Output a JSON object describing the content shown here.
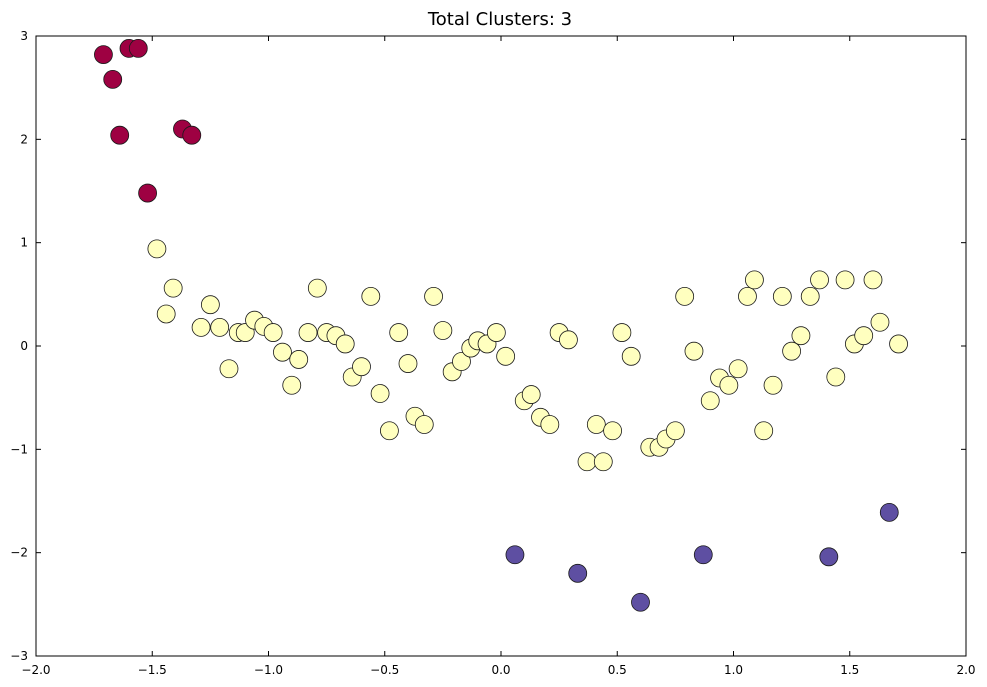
{
  "chart_data": {
    "type": "scatter",
    "title": "Total Clusters: 3",
    "xlabel": "",
    "ylabel": "",
    "xlim": [
      -2.0,
      2.0
    ],
    "ylim": [
      -3,
      3
    ],
    "x_ticks": [
      -2.0,
      -1.5,
      -1.0,
      -0.5,
      0.0,
      0.5,
      1.0,
      1.5,
      2.0
    ],
    "x_tick_labels": [
      "−2.0",
      "−1.5",
      "−1.0",
      "−0.5",
      "0.0",
      "0.5",
      "1.0",
      "1.5",
      "2.0"
    ],
    "y_ticks": [
      -3,
      -2,
      -1,
      0,
      1,
      2,
      3
    ],
    "y_tick_labels": [
      "−3",
      "−2",
      "−1",
      "0",
      "1",
      "2",
      "3"
    ],
    "grid": false,
    "legend": "none",
    "series": [
      {
        "color": "#9e0142",
        "points": [
          [
            -1.71,
            2.82
          ],
          [
            -1.67,
            2.58
          ],
          [
            -1.64,
            2.04
          ],
          [
            -1.6,
            2.88
          ],
          [
            -1.56,
            2.88
          ],
          [
            -1.37,
            2.1
          ],
          [
            -1.33,
            2.04
          ],
          [
            -1.52,
            1.48
          ]
        ]
      },
      {
        "color": "#ffffbf",
        "points": [
          [
            -1.48,
            0.94
          ],
          [
            -1.41,
            0.56
          ],
          [
            -1.44,
            0.31
          ],
          [
            -1.25,
            0.4
          ],
          [
            -1.29,
            0.18
          ],
          [
            -1.21,
            0.18
          ],
          [
            -1.13,
            0.13
          ],
          [
            -1.1,
            0.13
          ],
          [
            -1.06,
            0.25
          ],
          [
            -1.02,
            0.19
          ],
          [
            -0.98,
            0.13
          ],
          [
            -1.17,
            -0.22
          ],
          [
            -0.94,
            -0.06
          ],
          [
            -0.87,
            -0.13
          ],
          [
            -0.9,
            -0.38
          ],
          [
            -0.83,
            0.13
          ],
          [
            -0.79,
            0.56
          ],
          [
            -0.75,
            0.13
          ],
          [
            -0.71,
            0.1
          ],
          [
            -0.67,
            0.02
          ],
          [
            -0.64,
            -0.3
          ],
          [
            -0.6,
            -0.2
          ],
          [
            -0.56,
            0.48
          ],
          [
            -0.52,
            -0.46
          ],
          [
            -0.48,
            -0.82
          ],
          [
            -0.44,
            0.13
          ],
          [
            -0.4,
            -0.17
          ],
          [
            -0.37,
            -0.68
          ],
          [
            -0.33,
            -0.76
          ],
          [
            -0.29,
            0.48
          ],
          [
            -0.25,
            0.15
          ],
          [
            -0.21,
            -0.25
          ],
          [
            -0.17,
            -0.15
          ],
          [
            -0.13,
            -0.02
          ],
          [
            -0.1,
            0.05
          ],
          [
            -0.06,
            0.02
          ],
          [
            -0.02,
            0.13
          ],
          [
            0.02,
            -0.1
          ],
          [
            0.1,
            -0.53
          ],
          [
            0.13,
            -0.47
          ],
          [
            0.17,
            -0.69
          ],
          [
            0.21,
            -0.76
          ],
          [
            0.25,
            0.13
          ],
          [
            0.29,
            0.06
          ],
          [
            0.37,
            -1.12
          ],
          [
            0.41,
            -0.76
          ],
          [
            0.44,
            -1.12
          ],
          [
            0.48,
            -0.82
          ],
          [
            0.52,
            0.13
          ],
          [
            0.56,
            -0.1
          ],
          [
            0.64,
            -0.98
          ],
          [
            0.68,
            -0.98
          ],
          [
            0.71,
            -0.9
          ],
          [
            0.75,
            -0.82
          ],
          [
            0.79,
            0.48
          ],
          [
            0.83,
            -0.05
          ],
          [
            0.9,
            -0.53
          ],
          [
            0.94,
            -0.31
          ],
          [
            0.98,
            -0.38
          ],
          [
            1.02,
            -0.22
          ],
          [
            1.06,
            0.48
          ],
          [
            1.09,
            0.64
          ],
          [
            1.13,
            -0.82
          ],
          [
            1.17,
            -0.38
          ],
          [
            1.21,
            0.48
          ],
          [
            1.25,
            -0.05
          ],
          [
            1.29,
            0.1
          ],
          [
            1.33,
            0.48
          ],
          [
            1.37,
            0.64
          ],
          [
            1.44,
            -0.3
          ],
          [
            1.48,
            0.64
          ],
          [
            1.52,
            0.02
          ],
          [
            1.56,
            0.1
          ],
          [
            1.6,
            0.64
          ],
          [
            1.63,
            0.23
          ],
          [
            1.71,
            0.02
          ]
        ]
      },
      {
        "color": "#5e4fa2",
        "points": [
          [
            0.06,
            -2.02
          ],
          [
            0.33,
            -2.2
          ],
          [
            0.6,
            -2.48
          ],
          [
            0.87,
            -2.02
          ],
          [
            1.41,
            -2.04
          ],
          [
            1.67,
            -1.61
          ]
        ]
      }
    ]
  }
}
